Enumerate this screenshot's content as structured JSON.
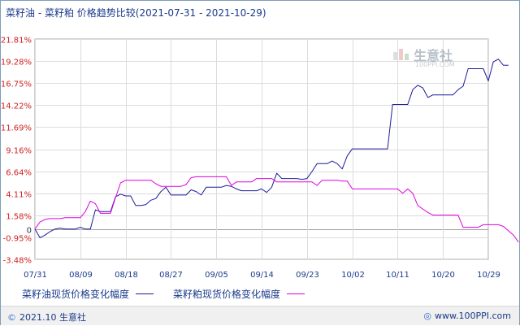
{
  "chart_data": {
    "type": "line",
    "title": "菜籽油 - 菜籽粕 价格趋势比较(2021-07-31 - 2021-10-29)",
    "xlabel": "",
    "ylabel": "",
    "x_ticks": [
      "07/31",
      "08/09",
      "08/18",
      "08/27",
      "09/05",
      "09/14",
      "09/23",
      "10/02",
      "10/11",
      "10/20",
      "10/29"
    ],
    "y_ticks": [
      "21.81%",
      "19.28%",
      "16.75%",
      "14.22%",
      "11.69%",
      "9.16%",
      "6.64%",
      "4.11%",
      "1.58%",
      "0",
      "-0.95%",
      "-3.48%"
    ],
    "ylim": [
      -3.48,
      21.81
    ],
    "xlim_days": [
      0,
      90
    ],
    "grid": true,
    "legend_position": "bottom-left",
    "series": [
      {
        "name": "菜籽油现货价格变化幅度",
        "color": "#1c1c9c",
        "points": [
          [
            0,
            0
          ],
          [
            1,
            -1.0
          ],
          [
            2,
            -0.7
          ],
          [
            3,
            -0.3
          ],
          [
            4,
            0
          ],
          [
            5,
            0.1
          ],
          [
            6,
            0
          ],
          [
            7,
            0
          ],
          [
            8,
            0
          ],
          [
            9,
            0.2
          ],
          [
            10,
            0
          ],
          [
            11,
            0
          ],
          [
            12,
            2.2
          ],
          [
            13,
            2.0
          ],
          [
            14,
            2.0
          ],
          [
            15,
            2.0
          ],
          [
            16,
            3.7
          ],
          [
            17,
            4.0
          ],
          [
            18,
            3.8
          ],
          [
            19,
            3.8
          ],
          [
            20,
            2.7
          ],
          [
            21,
            2.7
          ],
          [
            22,
            2.8
          ],
          [
            23,
            3.3
          ],
          [
            24,
            3.5
          ],
          [
            25,
            4.3
          ],
          [
            26,
            4.8
          ],
          [
            27,
            3.9
          ],
          [
            28,
            3.9
          ],
          [
            29,
            3.9
          ],
          [
            30,
            3.9
          ],
          [
            31,
            4.5
          ],
          [
            32,
            4.3
          ],
          [
            33,
            3.9
          ],
          [
            34,
            4.8
          ],
          [
            35,
            4.8
          ],
          [
            36,
            4.8
          ],
          [
            37,
            4.8
          ],
          [
            38,
            5.0
          ],
          [
            39,
            4.9
          ],
          [
            40,
            4.6
          ],
          [
            41,
            4.4
          ],
          [
            42,
            4.4
          ],
          [
            43,
            4.4
          ],
          [
            44,
            4.4
          ],
          [
            45,
            4.6
          ],
          [
            46,
            4.2
          ],
          [
            47,
            4.8
          ],
          [
            48,
            6.4
          ],
          [
            49,
            5.8
          ],
          [
            50,
            5.8
          ],
          [
            51,
            5.8
          ],
          [
            52,
            5.8
          ],
          [
            53,
            5.7
          ],
          [
            54,
            5.8
          ],
          [
            55,
            6.6
          ],
          [
            56,
            7.5
          ],
          [
            57,
            7.5
          ],
          [
            58,
            7.5
          ],
          [
            59,
            7.8
          ],
          [
            60,
            7.5
          ],
          [
            61,
            6.9
          ],
          [
            62,
            8.4
          ],
          [
            63,
            9.2
          ],
          [
            64,
            9.2
          ],
          [
            65,
            9.2
          ],
          [
            66,
            9.2
          ],
          [
            67,
            9.2
          ],
          [
            68,
            9.2
          ],
          [
            69,
            9.2
          ],
          [
            70,
            9.2
          ],
          [
            71,
            14.3
          ],
          [
            72,
            14.3
          ],
          [
            73,
            14.3
          ],
          [
            74,
            14.3
          ],
          [
            75,
            16.0
          ],
          [
            76,
            16.5
          ],
          [
            77,
            16.2
          ],
          [
            78,
            15.1
          ],
          [
            79,
            15.4
          ],
          [
            80,
            15.4
          ],
          [
            81,
            15.4
          ],
          [
            82,
            15.4
          ],
          [
            83,
            15.4
          ],
          [
            84,
            16.0
          ],
          [
            85,
            16.4
          ],
          [
            86,
            18.4
          ],
          [
            87,
            18.4
          ],
          [
            88,
            18.4
          ],
          [
            89,
            18.4
          ],
          [
            90,
            17.0
          ],
          [
            91,
            19.2
          ],
          [
            92,
            19.5
          ],
          [
            93,
            18.8
          ],
          [
            94,
            18.8
          ]
        ]
      },
      {
        "name": "菜籽粕现货价格变化幅度",
        "color": "#e000e0",
        "points": [
          [
            0,
            0
          ],
          [
            1,
            0.8
          ],
          [
            2,
            1.1
          ],
          [
            3,
            1.2
          ],
          [
            4,
            1.2
          ],
          [
            5,
            1.2
          ],
          [
            6,
            1.3
          ],
          [
            7,
            1.3
          ],
          [
            8,
            1.3
          ],
          [
            9,
            1.3
          ],
          [
            10,
            2.0
          ],
          [
            11,
            3.2
          ],
          [
            12,
            2.9
          ],
          [
            13,
            1.8
          ],
          [
            14,
            1.8
          ],
          [
            15,
            1.8
          ],
          [
            16,
            3.6
          ],
          [
            17,
            5.3
          ],
          [
            18,
            5.6
          ],
          [
            19,
            5.6
          ],
          [
            20,
            5.6
          ],
          [
            21,
            5.6
          ],
          [
            22,
            5.6
          ],
          [
            23,
            5.6
          ],
          [
            24,
            5.2
          ],
          [
            25,
            4.9
          ],
          [
            26,
            4.9
          ],
          [
            27,
            4.9
          ],
          [
            28,
            4.9
          ],
          [
            29,
            4.9
          ],
          [
            30,
            5.1
          ],
          [
            31,
            5.9
          ],
          [
            32,
            6.0
          ],
          [
            33,
            6.0
          ],
          [
            34,
            6.0
          ],
          [
            35,
            6.0
          ],
          [
            36,
            6.0
          ],
          [
            37,
            6.0
          ],
          [
            38,
            6.0
          ],
          [
            39,
            5.0
          ],
          [
            40,
            5.4
          ],
          [
            41,
            5.4
          ],
          [
            42,
            5.4
          ],
          [
            43,
            5.4
          ],
          [
            44,
            5.8
          ],
          [
            45,
            5.8
          ],
          [
            46,
            5.8
          ],
          [
            47,
            5.8
          ],
          [
            48,
            5.4
          ],
          [
            49,
            5.4
          ],
          [
            50,
            5.4
          ],
          [
            51,
            5.4
          ],
          [
            52,
            5.4
          ],
          [
            53,
            5.4
          ],
          [
            54,
            5.4
          ],
          [
            55,
            5.4
          ],
          [
            56,
            5.0
          ],
          [
            57,
            5.6
          ],
          [
            58,
            5.6
          ],
          [
            59,
            5.6
          ],
          [
            60,
            5.6
          ],
          [
            61,
            5.5
          ],
          [
            62,
            5.5
          ],
          [
            63,
            4.6
          ],
          [
            64,
            4.6
          ],
          [
            65,
            4.6
          ],
          [
            66,
            4.6
          ],
          [
            67,
            4.6
          ],
          [
            68,
            4.6
          ],
          [
            69,
            4.6
          ],
          [
            70,
            4.6
          ],
          [
            71,
            4.6
          ],
          [
            72,
            4.6
          ],
          [
            73,
            4.1
          ],
          [
            74,
            4.6
          ],
          [
            75,
            4.1
          ],
          [
            76,
            2.7
          ],
          [
            77,
            2.3
          ],
          [
            78,
            1.9
          ],
          [
            79,
            1.6
          ],
          [
            80,
            1.6
          ],
          [
            81,
            1.6
          ],
          [
            82,
            1.6
          ],
          [
            83,
            1.6
          ],
          [
            84,
            1.6
          ],
          [
            85,
            0.2
          ],
          [
            86,
            0.2
          ],
          [
            87,
            0.2
          ],
          [
            88,
            0.2
          ],
          [
            89,
            0.5
          ],
          [
            90,
            0.5
          ],
          [
            91,
            0.5
          ],
          [
            92,
            0.5
          ],
          [
            93,
            0.3
          ],
          [
            94,
            -0.2
          ],
          [
            95,
            -0.7
          ],
          [
            96,
            -1.5
          ]
        ]
      }
    ]
  },
  "watermark": {
    "text": "生意社",
    "url": "100PPI.COM"
  },
  "footer": {
    "left_text": "2021.10 生意社",
    "right_text": "www.100PPI.com"
  }
}
